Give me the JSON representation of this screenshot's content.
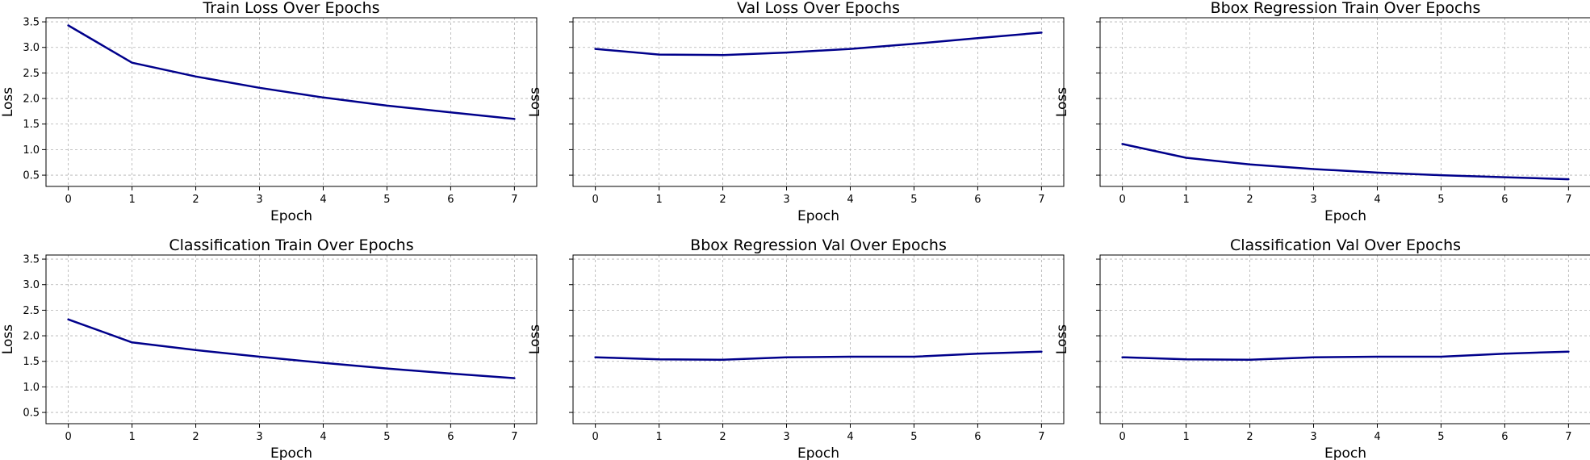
{
  "figure": {
    "colors": {
      "line": "#00008b",
      "grid": "#b0b0b0",
      "frame": "#000000"
    }
  },
  "chart_data": [
    {
      "type": "line",
      "title": "Train Loss Over Epochs",
      "xlabel": "Epoch",
      "ylabel": "Loss",
      "show_y_ticklabels": true,
      "grid": true,
      "xlim": [
        -0.35,
        7.35
      ],
      "ylim": [
        0.28,
        3.58
      ],
      "x_ticks": [
        0,
        1,
        2,
        3,
        4,
        5,
        6,
        7
      ],
      "y_ticks": [
        0.5,
        1.0,
        1.5,
        2.0,
        2.5,
        3.0,
        3.5
      ],
      "series": [
        {
          "x": [
            0,
            1,
            2,
            3,
            4,
            5,
            6,
            7
          ],
          "values": [
            3.43,
            2.7,
            2.43,
            2.21,
            2.02,
            1.86,
            1.73,
            1.6
          ]
        }
      ]
    },
    {
      "type": "line",
      "title": "Val Loss Over Epochs",
      "xlabel": "Epoch",
      "ylabel": "Loss",
      "show_y_ticklabels": false,
      "grid": true,
      "xlim": [
        -0.35,
        7.35
      ],
      "ylim": [
        0.28,
        3.58
      ],
      "x_ticks": [
        0,
        1,
        2,
        3,
        4,
        5,
        6,
        7
      ],
      "y_ticks": [
        0.5,
        1.0,
        1.5,
        2.0,
        2.5,
        3.0,
        3.5
      ],
      "series": [
        {
          "x": [
            0,
            1,
            2,
            3,
            4,
            5,
            6,
            7
          ],
          "values": [
            2.97,
            2.86,
            2.85,
            2.9,
            2.97,
            3.07,
            3.18,
            3.29
          ]
        }
      ]
    },
    {
      "type": "line",
      "title": "Bbox Regression Train Over Epochs",
      "xlabel": "Epoch",
      "ylabel": "Loss",
      "show_y_ticklabels": false,
      "grid": true,
      "xlim": [
        -0.35,
        7.35
      ],
      "ylim": [
        0.28,
        3.58
      ],
      "x_ticks": [
        0,
        1,
        2,
        3,
        4,
        5,
        6,
        7
      ],
      "y_ticks": [
        0.5,
        1.0,
        1.5,
        2.0,
        2.5,
        3.0,
        3.5
      ],
      "series": [
        {
          "x": [
            0,
            1,
            2,
            3,
            4,
            5,
            6,
            7
          ],
          "values": [
            1.11,
            0.84,
            0.71,
            0.62,
            0.55,
            0.5,
            0.46,
            0.42
          ]
        }
      ]
    },
    {
      "type": "line",
      "title": "Classification Train Over Epochs",
      "xlabel": "Epoch",
      "ylabel": "Loss",
      "show_y_ticklabels": true,
      "grid": true,
      "xlim": [
        -0.35,
        7.35
      ],
      "ylim": [
        0.28,
        3.58
      ],
      "x_ticks": [
        0,
        1,
        2,
        3,
        4,
        5,
        6,
        7
      ],
      "y_ticks": [
        0.5,
        1.0,
        1.5,
        2.0,
        2.5,
        3.0,
        3.5
      ],
      "series": [
        {
          "x": [
            0,
            1,
            2,
            3,
            4,
            5,
            6,
            7
          ],
          "values": [
            2.32,
            1.87,
            1.72,
            1.59,
            1.47,
            1.36,
            1.26,
            1.17
          ]
        }
      ]
    },
    {
      "type": "line",
      "title": "Bbox Regression Val Over Epochs",
      "xlabel": "Epoch",
      "ylabel": "Loss",
      "show_y_ticklabels": false,
      "grid": true,
      "xlim": [
        -0.35,
        7.35
      ],
      "ylim": [
        0.28,
        3.58
      ],
      "x_ticks": [
        0,
        1,
        2,
        3,
        4,
        5,
        6,
        7
      ],
      "y_ticks": [
        0.5,
        1.0,
        1.5,
        2.0,
        2.5,
        3.0,
        3.5
      ],
      "series": [
        {
          "x": [
            0,
            1,
            2,
            3,
            4,
            5,
            6,
            7
          ],
          "values": [
            1.58,
            1.54,
            1.53,
            1.58,
            1.59,
            1.59,
            1.65,
            1.69
          ]
        }
      ]
    },
    {
      "type": "line",
      "title": "Classification Val Over Epochs",
      "xlabel": "Epoch",
      "ylabel": "Loss",
      "show_y_ticklabels": false,
      "grid": true,
      "xlim": [
        -0.35,
        7.35
      ],
      "ylim": [
        0.28,
        3.58
      ],
      "x_ticks": [
        0,
        1,
        2,
        3,
        4,
        5,
        6,
        7
      ],
      "y_ticks": [
        0.5,
        1.0,
        1.5,
        2.0,
        2.5,
        3.0,
        3.5
      ],
      "series": [
        {
          "x": [
            0,
            1,
            2,
            3,
            4,
            5,
            6,
            7
          ],
          "values": [
            1.58,
            1.54,
            1.53,
            1.58,
            1.59,
            1.59,
            1.65,
            1.69
          ]
        }
      ]
    }
  ]
}
